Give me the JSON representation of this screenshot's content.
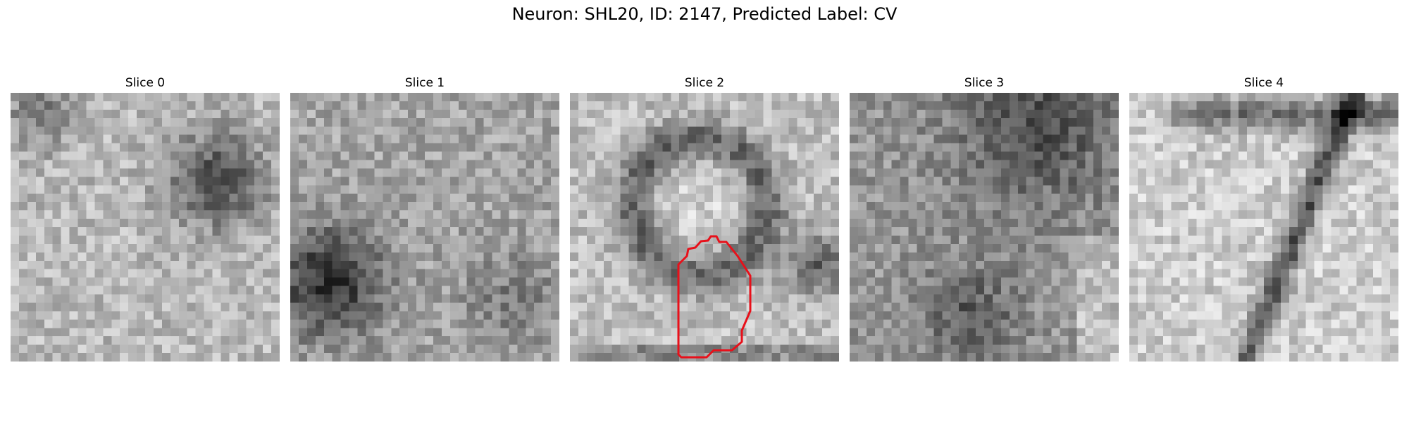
{
  "title": "Neuron: SHL20, ID: 2147, Predicted Label: CV",
  "slices": [
    {
      "title": "Slice 0"
    },
    {
      "title": "Slice 1"
    },
    {
      "title": "Slice 2"
    },
    {
      "title": "Slice 3"
    },
    {
      "title": "Slice 4"
    }
  ],
  "contour_color": "#e8101a",
  "colormap": "grayscale"
}
